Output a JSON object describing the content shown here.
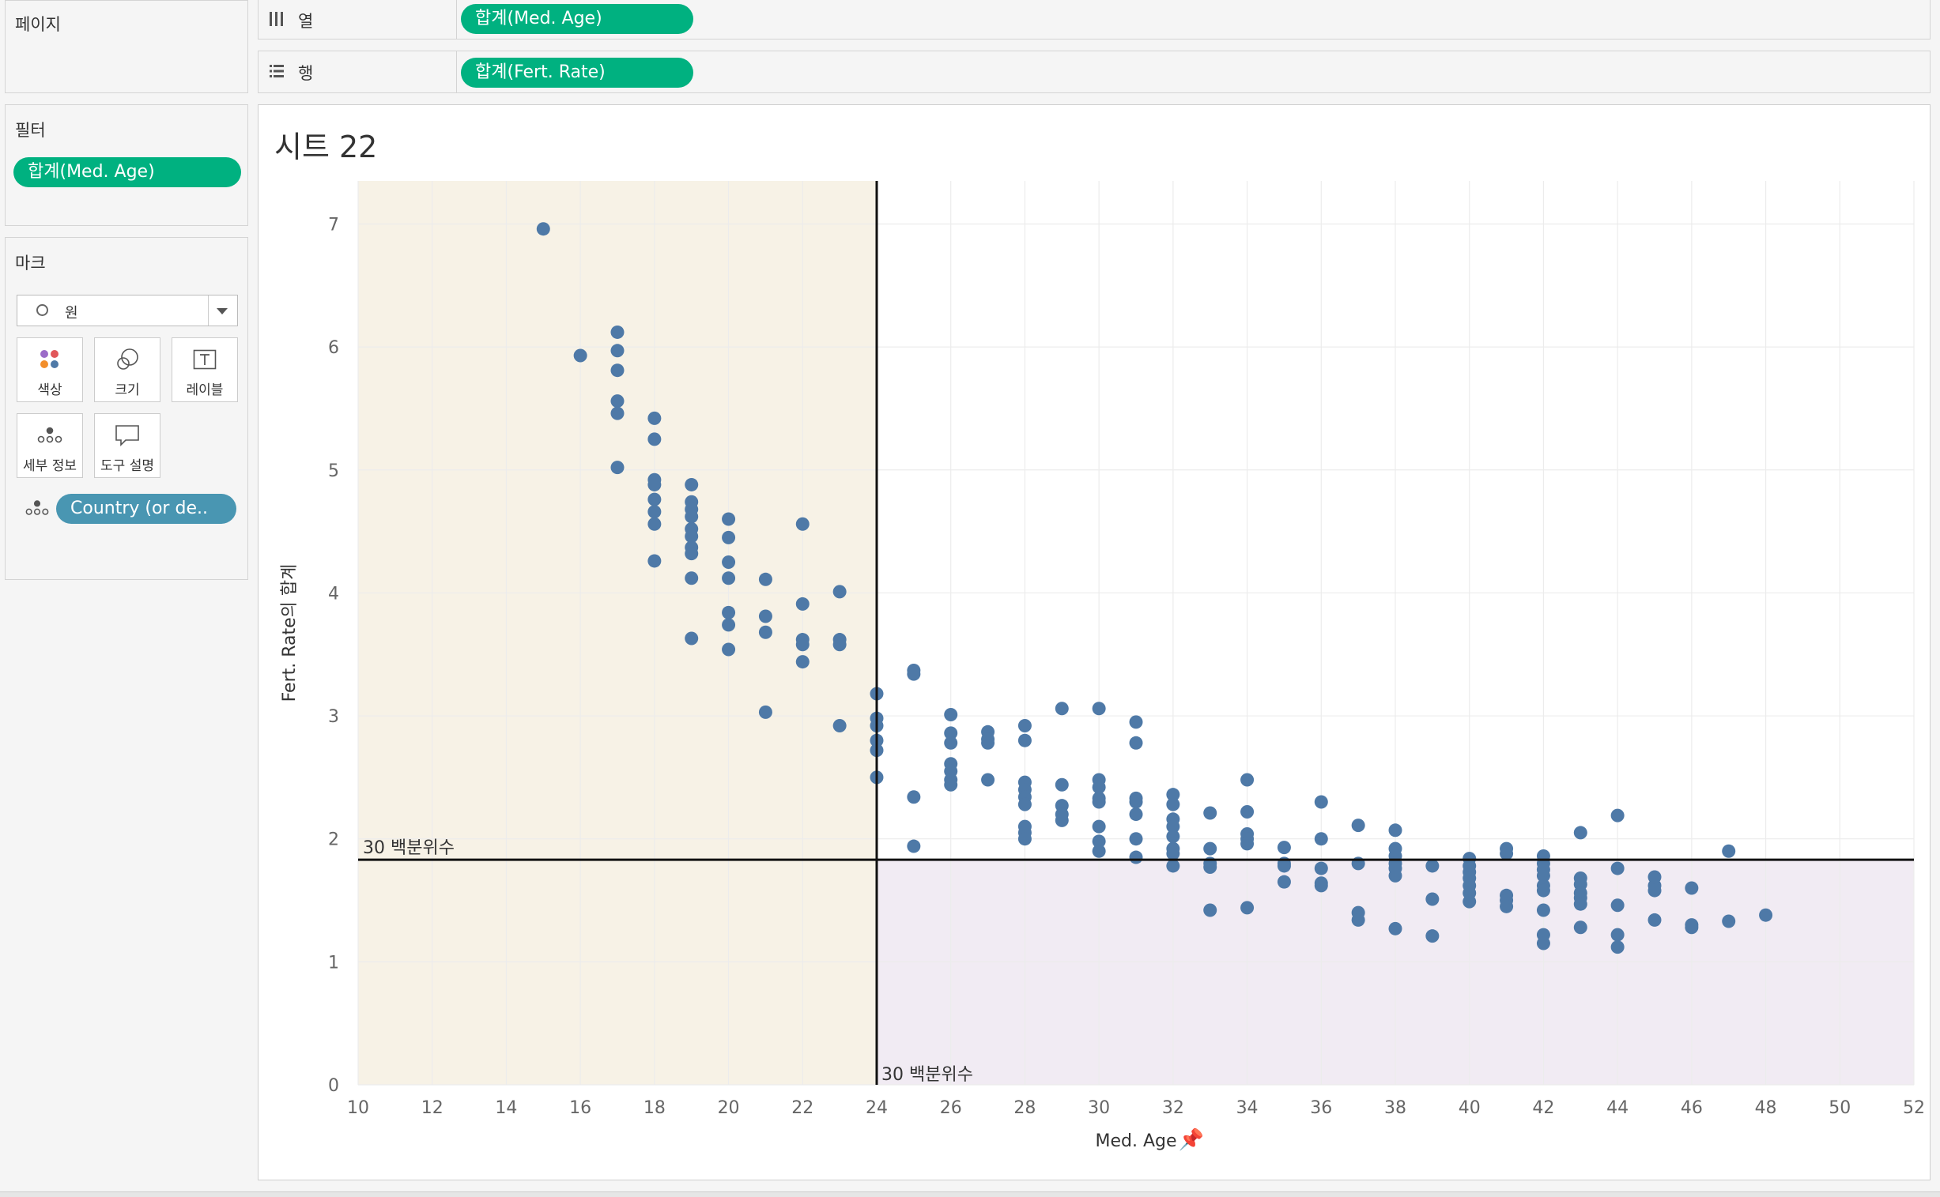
{
  "pages": {
    "title": "페이지"
  },
  "columns_shelf": {
    "label": "열",
    "pill": "합계(Med. Age)",
    "icon": "columns-icon"
  },
  "rows_shelf": {
    "label": "행",
    "pill": "합계(Fert. Rate)",
    "icon": "rows-icon"
  },
  "filters": {
    "title": "필터",
    "pill": "합계(Med. Age)"
  },
  "marks": {
    "title": "마크",
    "mark_type": "원",
    "buttons": {
      "color": "색상",
      "size": "크기",
      "label": "레이블",
      "detail": "세부 정보",
      "tooltip": "도구 설명"
    },
    "detail_pill": "Country (or de.."
  },
  "sheet": {
    "title": "시트 22"
  },
  "chart_data": {
    "type": "scatter",
    "xlabel": "Med. Age",
    "ylabel": "Fert. Rate의 합계",
    "xlim": [
      10,
      52
    ],
    "ylim": [
      0,
      7.35
    ],
    "x_ticks": [
      10,
      12,
      14,
      16,
      18,
      20,
      22,
      24,
      26,
      28,
      30,
      32,
      34,
      36,
      38,
      40,
      42,
      44,
      46,
      48,
      50,
      52
    ],
    "y_ticks": [
      0,
      1,
      2,
      3,
      4,
      5,
      6,
      7
    ],
    "reference_lines": [
      {
        "axis": "x",
        "value": 24,
        "label": "30 백분위수"
      },
      {
        "axis": "y",
        "value": 1.83,
        "label": "30 백분위수"
      }
    ],
    "bands": [
      {
        "axis": "x",
        "from": 10,
        "to": 24,
        "color": "#f7f2e6"
      },
      {
        "axis": "y",
        "from": 0,
        "to": 1.83,
        "color": "#f1ebf3"
      }
    ],
    "point_color": "#4e79a7",
    "points": [
      [
        15,
        6.96
      ],
      [
        16,
        5.93
      ],
      [
        17,
        6.12
      ],
      [
        17,
        5.97
      ],
      [
        17,
        5.81
      ],
      [
        17,
        5.56
      ],
      [
        17,
        5.46
      ],
      [
        17,
        5.02
      ],
      [
        18,
        5.42
      ],
      [
        18,
        5.25
      ],
      [
        18,
        4.92
      ],
      [
        18,
        4.88
      ],
      [
        18,
        4.76
      ],
      [
        18,
        4.66
      ],
      [
        18,
        4.56
      ],
      [
        18,
        4.26
      ],
      [
        19,
        4.88
      ],
      [
        19,
        4.74
      ],
      [
        19,
        4.68
      ],
      [
        19,
        4.62
      ],
      [
        19,
        4.52
      ],
      [
        19,
        4.46
      ],
      [
        19,
        4.37
      ],
      [
        19,
        4.32
      ],
      [
        19,
        4.12
      ],
      [
        19,
        3.63
      ],
      [
        20,
        4.6
      ],
      [
        20,
        4.45
      ],
      [
        20,
        4.25
      ],
      [
        20,
        4.12
      ],
      [
        20,
        3.84
      ],
      [
        20,
        3.74
      ],
      [
        20,
        3.54
      ],
      [
        21,
        4.11
      ],
      [
        21,
        3.81
      ],
      [
        21,
        3.68
      ],
      [
        21,
        3.03
      ],
      [
        22,
        4.56
      ],
      [
        22,
        3.91
      ],
      [
        22,
        3.62
      ],
      [
        22,
        3.58
      ],
      [
        22,
        3.44
      ],
      [
        23,
        4.01
      ],
      [
        23,
        3.62
      ],
      [
        23,
        3.58
      ],
      [
        23,
        2.92
      ],
      [
        24,
        3.18
      ],
      [
        24,
        2.98
      ],
      [
        24,
        2.92
      ],
      [
        24,
        2.8
      ],
      [
        24,
        2.72
      ],
      [
        24,
        2.5
      ],
      [
        25,
        3.37
      ],
      [
        25,
        3.34
      ],
      [
        25,
        2.34
      ],
      [
        25,
        1.94
      ],
      [
        26,
        3.01
      ],
      [
        26,
        2.86
      ],
      [
        26,
        2.78
      ],
      [
        26,
        2.61
      ],
      [
        26,
        2.55
      ],
      [
        26,
        2.48
      ],
      [
        26,
        2.44
      ],
      [
        27,
        2.87
      ],
      [
        27,
        2.81
      ],
      [
        27,
        2.78
      ],
      [
        27,
        2.48
      ],
      [
        28,
        2.92
      ],
      [
        28,
        2.8
      ],
      [
        28,
        2.46
      ],
      [
        28,
        2.4
      ],
      [
        28,
        2.34
      ],
      [
        28,
        2.28
      ],
      [
        28,
        2.1
      ],
      [
        28,
        2.05
      ],
      [
        28,
        2.0
      ],
      [
        29,
        3.06
      ],
      [
        29,
        2.44
      ],
      [
        29,
        2.27
      ],
      [
        29,
        2.2
      ],
      [
        29,
        2.15
      ],
      [
        30,
        3.06
      ],
      [
        30,
        2.48
      ],
      [
        30,
        2.42
      ],
      [
        30,
        2.33
      ],
      [
        30,
        2.3
      ],
      [
        30,
        2.1
      ],
      [
        30,
        1.98
      ],
      [
        30,
        1.9
      ],
      [
        31,
        2.95
      ],
      [
        31,
        2.78
      ],
      [
        31,
        2.33
      ],
      [
        31,
        2.3
      ],
      [
        31,
        2.2
      ],
      [
        31,
        2.0
      ],
      [
        31,
        1.85
      ],
      [
        32,
        2.36
      ],
      [
        32,
        2.28
      ],
      [
        32,
        2.16
      ],
      [
        32,
        2.1
      ],
      [
        32,
        2.02
      ],
      [
        32,
        1.92
      ],
      [
        32,
        1.88
      ],
      [
        32,
        1.78
      ],
      [
        33,
        2.21
      ],
      [
        33,
        1.92
      ],
      [
        33,
        1.8
      ],
      [
        33,
        1.77
      ],
      [
        33,
        1.42
      ],
      [
        34,
        2.48
      ],
      [
        34,
        2.22
      ],
      [
        34,
        2.04
      ],
      [
        34,
        2.0
      ],
      [
        34,
        1.96
      ],
      [
        34,
        1.44
      ],
      [
        35,
        1.93
      ],
      [
        35,
        1.8
      ],
      [
        35,
        1.78
      ],
      [
        35,
        1.65
      ],
      [
        36,
        2.3
      ],
      [
        36,
        2.0
      ],
      [
        36,
        1.76
      ],
      [
        36,
        1.64
      ],
      [
        36,
        1.62
      ],
      [
        37,
        2.11
      ],
      [
        37,
        1.8
      ],
      [
        37,
        1.4
      ],
      [
        37,
        1.34
      ],
      [
        38,
        2.07
      ],
      [
        38,
        1.92
      ],
      [
        38,
        1.86
      ],
      [
        38,
        1.8
      ],
      [
        38,
        1.76
      ],
      [
        38,
        1.7
      ],
      [
        38,
        1.27
      ],
      [
        39,
        1.78
      ],
      [
        39,
        1.51
      ],
      [
        39,
        1.21
      ],
      [
        40,
        1.84
      ],
      [
        40,
        1.78
      ],
      [
        40,
        1.73
      ],
      [
        40,
        1.68
      ],
      [
        40,
        1.62
      ],
      [
        40,
        1.56
      ],
      [
        40,
        1.49
      ],
      [
        41,
        1.92
      ],
      [
        41,
        1.88
      ],
      [
        41,
        1.54
      ],
      [
        41,
        1.5
      ],
      [
        41,
        1.45
      ],
      [
        42,
        1.86
      ],
      [
        42,
        1.8
      ],
      [
        42,
        1.75
      ],
      [
        42,
        1.7
      ],
      [
        42,
        1.62
      ],
      [
        42,
        1.58
      ],
      [
        42,
        1.42
      ],
      [
        42,
        1.22
      ],
      [
        42,
        1.15
      ],
      [
        43,
        2.05
      ],
      [
        43,
        1.68
      ],
      [
        43,
        1.63
      ],
      [
        43,
        1.56
      ],
      [
        43,
        1.52
      ],
      [
        43,
        1.47
      ],
      [
        43,
        1.28
      ],
      [
        44,
        2.19
      ],
      [
        44,
        1.76
      ],
      [
        44,
        1.46
      ],
      [
        44,
        1.22
      ],
      [
        44,
        1.12
      ],
      [
        45,
        1.69
      ],
      [
        45,
        1.62
      ],
      [
        45,
        1.58
      ],
      [
        45,
        1.34
      ],
      [
        46,
        1.6
      ],
      [
        46,
        1.3
      ],
      [
        46,
        1.28
      ],
      [
        47,
        1.9
      ],
      [
        47,
        1.33
      ],
      [
        48,
        1.38
      ]
    ]
  }
}
